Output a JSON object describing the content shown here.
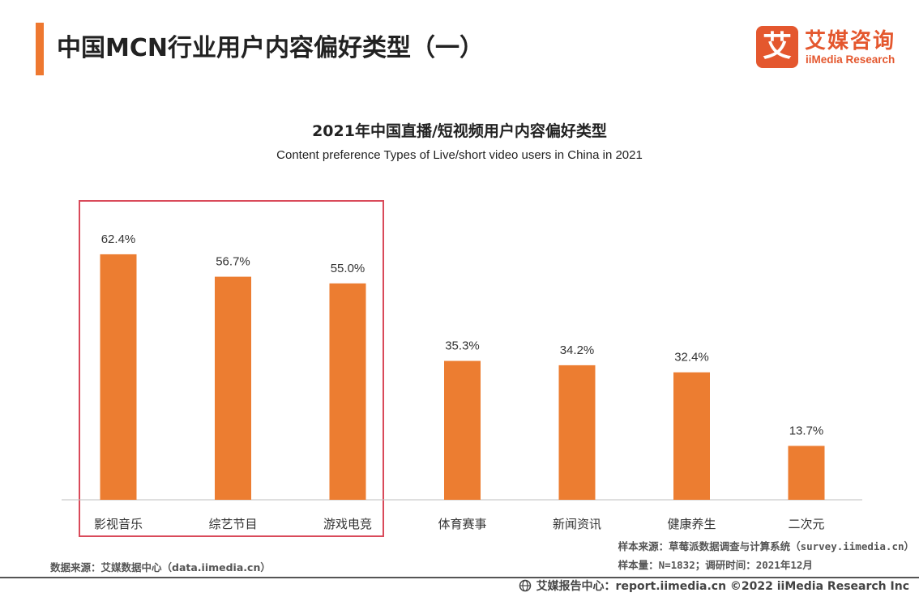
{
  "page": {
    "title": "中国MCN行业用户内容偏好类型（一）"
  },
  "logo": {
    "mark": "艾",
    "name_cn": "艾媒咨询",
    "name_en": "iiMedia Research"
  },
  "colors": {
    "accent": "#ee7830",
    "bar": "#ec7d31",
    "highlight_box": "#d94a5a",
    "logo": "#e4572e"
  },
  "chart_data": {
    "type": "bar",
    "title": "2021年中国直播/短视频用户内容偏好类型",
    "subtitle": "Content preference Types of Live/short video users in China in 2021",
    "categories": [
      "影视音乐",
      "综艺节目",
      "游戏电竞",
      "体育赛事",
      "新闻资讯",
      "健康养生",
      "二次元"
    ],
    "values": [
      62.4,
      56.7,
      55.0,
      35.3,
      34.2,
      32.4,
      13.7
    ],
    "labels": [
      "62.4%",
      "56.7%",
      "55.0%",
      "35.3%",
      "34.2%",
      "32.4%",
      "13.7%"
    ],
    "ylim": [
      0,
      70
    ],
    "highlighted_categories": [
      "影视音乐",
      "综艺节目",
      "游戏电竞"
    ],
    "grid": false
  },
  "notes": {
    "sample_source": "样本来源：草莓派数据调查与计算系统（survey.iimedia.cn）",
    "sample_size": "样本量：N=1832；调研时间：2021年12月",
    "data_source": "数据来源：艾媒数据中心（data.iimedia.cn）"
  },
  "footer": {
    "icon": "globe-icon",
    "text": "艾媒报告中心：report.iimedia.cn  ©2022  iiMedia Research  Inc"
  }
}
